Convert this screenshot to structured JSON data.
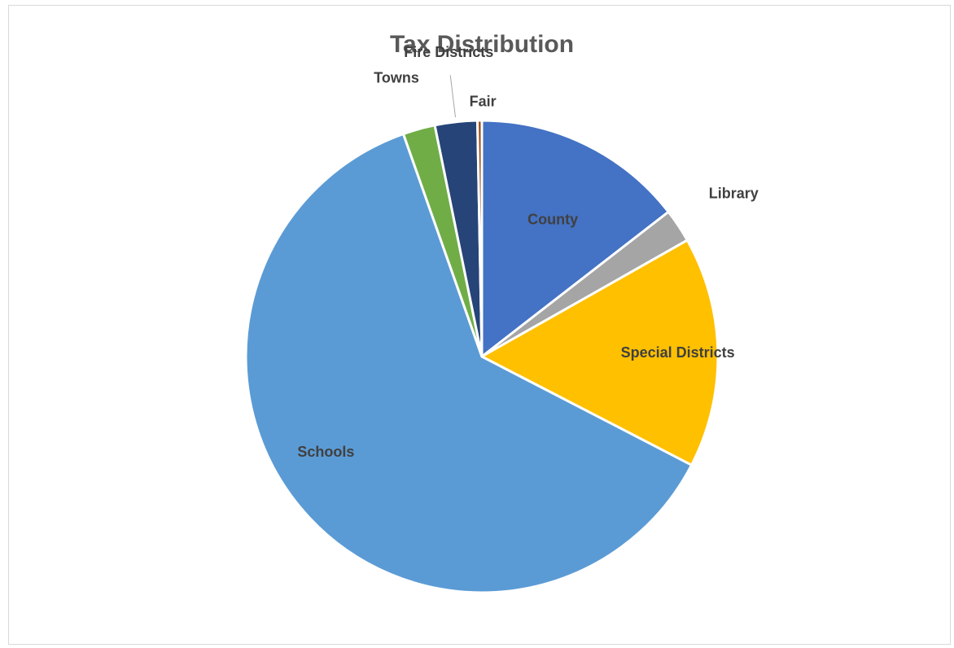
{
  "chart_data": {
    "type": "pie",
    "title": "Tax Distribution",
    "categories": [
      "County",
      "Library",
      "Special Districts",
      "Schools",
      "Towns",
      "Fire Districts",
      "Fair"
    ],
    "values": [
      14.5,
      2.3,
      15.8,
      62.0,
      2.2,
      2.9,
      0.3
    ],
    "colors": [
      "#4472C4",
      "#A5A5A5",
      "#FFC000",
      "#5B9BD5",
      "#70AD47",
      "#264478",
      "#9E480E"
    ],
    "legend": "none",
    "data_labels": "category-name"
  }
}
